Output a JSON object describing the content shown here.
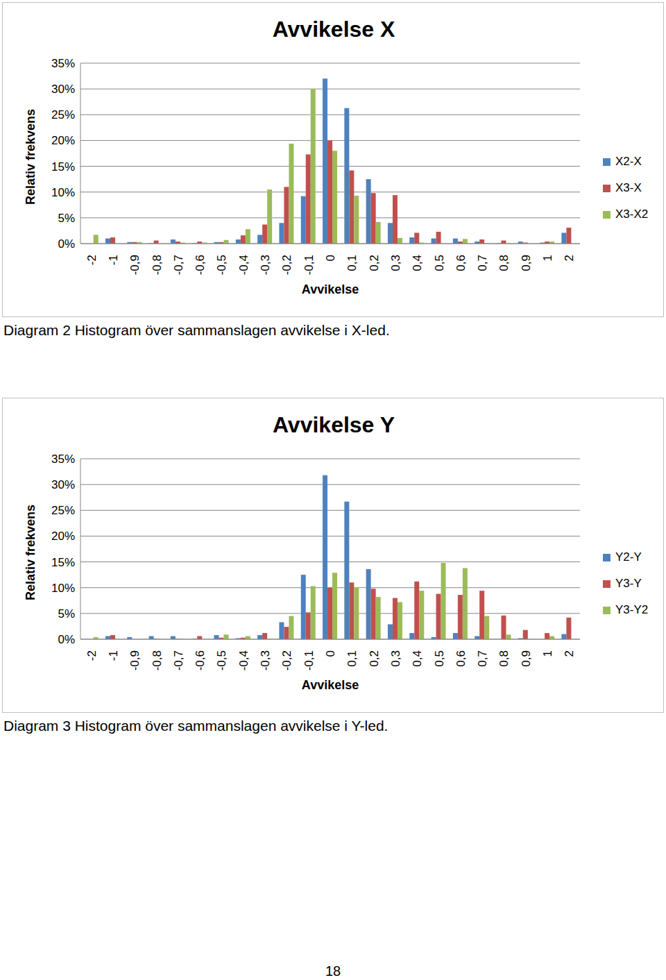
{
  "chart_data": [
    {
      "type": "bar",
      "title": "Avvikelse X",
      "x_label": "Avvikelse",
      "y_label": "Relativ frekvens",
      "caption": "Diagram 2 Histogram över sammanslagen avvikelse i X-led.",
      "categories": [
        "-2",
        "-1",
        "-0,9",
        "-0,8",
        "-0,7",
        "-0,6",
        "-0,5",
        "-0,4",
        "-0,3",
        "-0,2",
        "-0,1",
        "0",
        "0,1",
        "0,2",
        "0,3",
        "0,4",
        "0,5",
        "0,6",
        "0,7",
        "0,8",
        "0,9",
        "1",
        "2"
      ],
      "series": [
        {
          "name": "X2-X",
          "color": "#4f81bd",
          "values": [
            0,
            1.0,
            0.3,
            0.1,
            0.8,
            0.1,
            0.3,
            0.8,
            1.7,
            4.0,
            9.2,
            32,
            26.3,
            12.5,
            4.0,
            1.2,
            1.0,
            1.0,
            0.4,
            0.1,
            0.4,
            0.2,
            2.1
          ]
        },
        {
          "name": "X3-X",
          "color": "#c0504d",
          "values": [
            0,
            1.2,
            0.3,
            0.6,
            0.4,
            0.4,
            0.3,
            1.6,
            3.7,
            11,
            17.3,
            20,
            14.2,
            9.8,
            9.4,
            2.1,
            2.3,
            0.4,
            0.8,
            0.6,
            0.2,
            0.4,
            3.1
          ]
        },
        {
          "name": "X3-X2",
          "color": "#9bbb59",
          "values": [
            1.7,
            0,
            0.3,
            0,
            0.2,
            0.2,
            0.7,
            2.8,
            10.5,
            19.4,
            30,
            18,
            9.3,
            4.2,
            1.1,
            0.2,
            0,
            0.9,
            0.1,
            0.1,
            0,
            0.4,
            0
          ]
        }
      ],
      "ylim": [
        0,
        35
      ],
      "yticks": [
        {
          "value": 0,
          "label": "0%"
        },
        {
          "value": 5,
          "label": "5%"
        },
        {
          "value": 10,
          "label": "10%"
        },
        {
          "value": 15,
          "label": "15%"
        },
        {
          "value": 20,
          "label": "20%"
        },
        {
          "value": 25,
          "label": "25%"
        },
        {
          "value": 30,
          "label": "30%"
        },
        {
          "value": 35,
          "label": "35%"
        }
      ],
      "grid": true,
      "legend": "right"
    },
    {
      "type": "bar",
      "title": "Avvikelse Y",
      "x_label": "Avvikelse",
      "y_label": "Relativ frekvens",
      "caption": "Diagram 3 Histogram över sammanslagen avvikelse i Y-led.",
      "categories": [
        "-2",
        "-1",
        "-0,9",
        "-0,8",
        "-0,7",
        "-0,6",
        "-0,5",
        "-0,4",
        "-0,3",
        "-0,2",
        "-0,1",
        "0",
        "0,1",
        "0,2",
        "0,3",
        "0,4",
        "0,5",
        "0,6",
        "0,7",
        "0,8",
        "0,9",
        "1",
        "2"
      ],
      "series": [
        {
          "name": "Y2-Y",
          "color": "#4f81bd",
          "values": [
            0,
            0.6,
            0.4,
            0.6,
            0.6,
            0.1,
            0.8,
            0.2,
            0.8,
            3.3,
            12.5,
            31.8,
            26.7,
            13.6,
            2.9,
            1.2,
            0.4,
            1.2,
            0.6,
            0,
            0.2,
            0,
            1.0
          ]
        },
        {
          "name": "Y3-Y",
          "color": "#c0504d",
          "values": [
            0,
            0.8,
            0,
            0.1,
            0.1,
            0.6,
            0.3,
            0.3,
            1.2,
            2.4,
            5.2,
            10,
            11,
            9.8,
            8.0,
            11.2,
            8.8,
            8.6,
            9.4,
            4.6,
            1.8,
            1.2,
            4.2
          ]
        },
        {
          "name": "Y3-Y2",
          "color": "#9bbb59",
          "values": [
            0.4,
            0,
            0,
            0,
            0.1,
            0,
            0.9,
            0.6,
            0.1,
            4.5,
            10.3,
            12.9,
            10.1,
            8.2,
            7.2,
            9.4,
            14.8,
            13.8,
            4.5,
            0.9,
            0,
            0.6,
            0
          ]
        }
      ],
      "ylim": [
        0,
        35
      ],
      "yticks": [
        {
          "value": 0,
          "label": "0%"
        },
        {
          "value": 5,
          "label": "5%"
        },
        {
          "value": 10,
          "label": "10%"
        },
        {
          "value": 15,
          "label": "15%"
        },
        {
          "value": 20,
          "label": "20%"
        },
        {
          "value": 25,
          "label": "25%"
        },
        {
          "value": 30,
          "label": "30%"
        },
        {
          "value": 35,
          "label": "35%"
        }
      ],
      "grid": true,
      "legend": "right"
    }
  ],
  "page_number": 18
}
